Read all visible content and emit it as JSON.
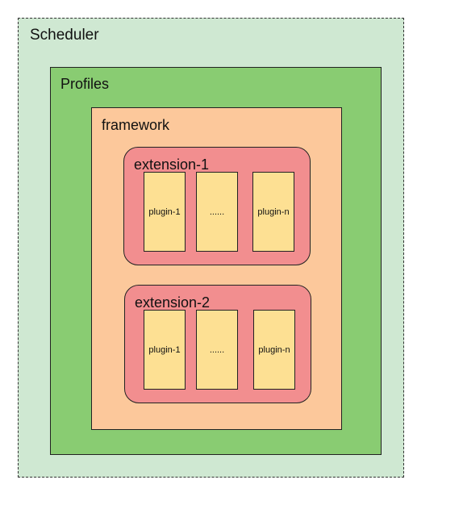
{
  "diagram": {
    "scheduler": {
      "label": "Scheduler"
    },
    "profiles": {
      "label": "Profiles"
    },
    "framework": {
      "label": "framework"
    },
    "extensions": [
      {
        "label": "extension-1",
        "plugins": [
          "plugin-1",
          "......",
          "plugin-n"
        ]
      },
      {
        "label": "extension-2",
        "plugins": [
          "plugin-1",
          "......",
          "plugin-n"
        ]
      }
    ]
  },
  "colors": {
    "scheduler_fill": "#cfe8d2",
    "profiles_fill": "#89cc72",
    "framework_fill": "#fcc89b",
    "extension_fill": "#f28e8f",
    "plugin_fill": "#fde093"
  }
}
